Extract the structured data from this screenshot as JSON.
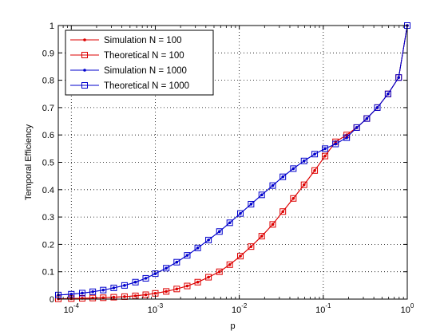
{
  "chart_data": {
    "type": "line",
    "title": "",
    "xlabel": "p",
    "ylabel": "Temporal Efficiency",
    "xscale": "log",
    "xlim": [
      7e-05,
      1
    ],
    "ylim": [
      0,
      1
    ],
    "grid": "dotted",
    "legend_position": "top-left",
    "x_ticks": [
      {
        "value": 0.0001,
        "base": "10",
        "exp": "-4"
      },
      {
        "value": 0.001,
        "base": "10",
        "exp": "-3"
      },
      {
        "value": 0.01,
        "base": "10",
        "exp": "-2"
      },
      {
        "value": 0.1,
        "base": "10",
        "exp": "-1"
      },
      {
        "value": 1,
        "base": "10",
        "exp": "0"
      }
    ],
    "y_ticks": [
      "0",
      "0.1",
      "0.2",
      "0.3",
      "0.4",
      "0.5",
      "0.6",
      "0.7",
      "0.8",
      "0.9",
      "1"
    ],
    "x": [
      7e-05,
      0.0001,
      0.000135,
      0.00018,
      0.00024,
      0.00032,
      0.00043,
      0.00058,
      0.00077,
      0.001,
      0.00135,
      0.0018,
      0.0024,
      0.0032,
      0.0043,
      0.0058,
      0.0077,
      0.0103,
      0.0138,
      0.0185,
      0.025,
      0.033,
      0.044,
      0.059,
      0.079,
      0.105,
      0.14,
      0.19,
      0.25,
      0.33,
      0.44,
      0.59,
      0.79,
      1.0
    ],
    "series": [
      {
        "name": "Simulation N = 100",
        "color": "#dd0000",
        "marker": "dot",
        "values": [
          0.001,
          0.002,
          0.003,
          0.004,
          0.005,
          0.007,
          0.009,
          0.012,
          0.016,
          0.021,
          0.028,
          0.037,
          0.048,
          0.062,
          0.08,
          0.1,
          0.126,
          0.157,
          0.192,
          0.23,
          0.273,
          0.32,
          0.368,
          0.418,
          0.47,
          0.523,
          0.575,
          0.6,
          0.627,
          0.66,
          0.7,
          0.75,
          0.81,
          1.0
        ]
      },
      {
        "name": "Theoretical N = 100",
        "color": "#dd0000",
        "marker": "square",
        "values": [
          0.001,
          0.002,
          0.003,
          0.004,
          0.005,
          0.007,
          0.009,
          0.012,
          0.016,
          0.021,
          0.028,
          0.037,
          0.048,
          0.062,
          0.08,
          0.1,
          0.126,
          0.157,
          0.192,
          0.23,
          0.273,
          0.32,
          0.368,
          0.418,
          0.47,
          0.523,
          0.575,
          0.6,
          0.627,
          0.66,
          0.7,
          0.75,
          0.81,
          1.0
        ]
      },
      {
        "name": "Simulation N = 1000",
        "color": "#0000cc",
        "marker": "dot",
        "values": [
          0.015,
          0.018,
          0.022,
          0.027,
          0.033,
          0.041,
          0.05,
          0.062,
          0.076,
          0.093,
          0.113,
          0.135,
          0.16,
          0.187,
          0.216,
          0.247,
          0.279,
          0.313,
          0.347,
          0.381,
          0.415,
          0.447,
          0.477,
          0.505,
          0.53,
          0.55,
          0.567,
          0.59,
          0.627,
          0.66,
          0.7,
          0.75,
          0.81,
          1.0
        ]
      },
      {
        "name": "Theoretical N = 1000",
        "color": "#0000cc",
        "marker": "square",
        "values": [
          0.015,
          0.018,
          0.022,
          0.027,
          0.033,
          0.041,
          0.05,
          0.062,
          0.076,
          0.093,
          0.113,
          0.135,
          0.16,
          0.187,
          0.216,
          0.247,
          0.279,
          0.313,
          0.347,
          0.381,
          0.415,
          0.447,
          0.477,
          0.505,
          0.53,
          0.55,
          0.567,
          0.59,
          0.627,
          0.66,
          0.7,
          0.75,
          0.81,
          1.0
        ]
      }
    ]
  }
}
